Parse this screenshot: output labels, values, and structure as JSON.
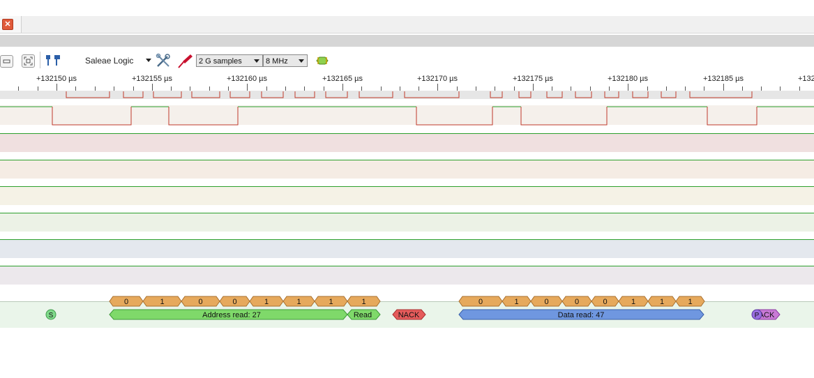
{
  "window": {
    "close_glyph": "✕"
  },
  "toolbar": {
    "device_name": "Saleae Logic",
    "sample_count": "2 G samples",
    "sample_rate": "8 MHz",
    "icons": [
      "minimize-icon",
      "zoom-fit-icon",
      "markers-icon",
      "settings-tools-icon",
      "probe-icon",
      "trigger-icon"
    ]
  },
  "ruler": {
    "ticks": [
      "+132150 µs",
      "+132155 µs",
      "+132160 µs",
      "+132165 µs",
      "+132170 µs",
      "+132175 µs",
      "+132180 µs",
      "+132185 µs",
      "+132"
    ]
  },
  "channels": {
    "row_colors": [
      "#f5f0eb",
      "#f0e0e0",
      "#f5ece4",
      "#f5f2e6",
      "#ecf2e6",
      "#e4e8ee",
      "#ece8ec"
    ],
    "high_color": "#2ca02c",
    "low_color": "#c0392b"
  },
  "decoder": {
    "address_bits": [
      "0",
      "1",
      "0",
      "0",
      "1",
      "1",
      "1",
      "1"
    ],
    "data_bits": [
      "0",
      "1",
      "0",
      "0",
      "0",
      "1",
      "1",
      "1"
    ],
    "start_label": "S",
    "address_label": "Address read: 27",
    "rw_label": "Read",
    "nack_label": "NACK",
    "data_label": "Data read: 47",
    "end_label": "P",
    "end_ack_label": "ACK",
    "colors": {
      "bit": "#e6a95c",
      "address": "#7fd96a",
      "nack": "#e55b5b",
      "data": "#6f97e0",
      "start": "#7fd98a",
      "stop": "#9a6ee0"
    }
  }
}
